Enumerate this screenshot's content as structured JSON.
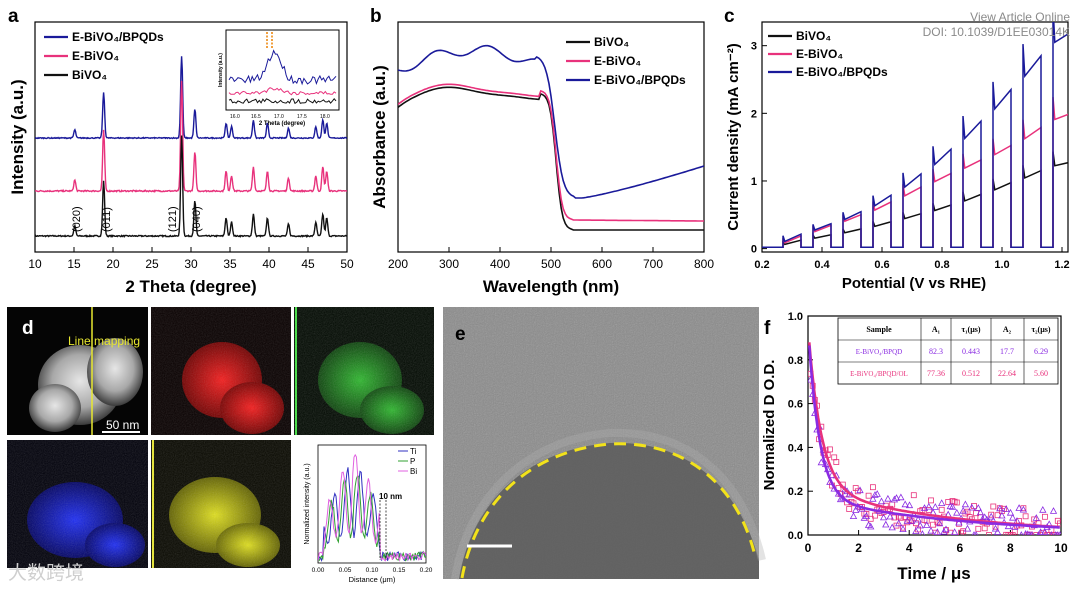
{
  "header": {
    "view_article": "View Article Online",
    "doi": "DOI: 10.1039/D1EE03014K"
  },
  "watermark": {
    "logo": "大数跨境"
  },
  "colors": {
    "blue": "#1a1a9a",
    "pink": "#e8327c",
    "black": "#111111",
    "purple": "#8a2be2"
  },
  "panels": {
    "a": {
      "letter": "a",
      "inset_xlabel": "2 Theta (degree)",
      "inset_ylabel": "Intensity (a.u.)",
      "inset_ticks": [
        "16.0",
        "16.5",
        "17.0",
        "17.5",
        "18.0"
      ],
      "peaks": [
        "(020)",
        "(011)",
        "(121)",
        "(040)"
      ]
    },
    "b": {
      "letter": "b"
    },
    "c": {
      "letter": "c"
    },
    "d": {
      "letter": "d",
      "line_mapping": "Line mapping",
      "scale": "50 nm",
      "lp_annotation": "10 nm",
      "lp_xlabel": "Distance (μm)",
      "lp_ylabel": "Normalized intensity (a.u.)",
      "lp_xticks": [
        "0.00",
        "0.05",
        "0.10",
        "0.15",
        "0.20"
      ],
      "lp_legend": [
        "Ti",
        "P",
        "Bi"
      ]
    },
    "e": {
      "letter": "e"
    },
    "f": {
      "letter": "f",
      "table": {
        "headers": [
          "Sample",
          "A₁",
          "τ₁(μs)",
          "A₂",
          "τ₂(μs)"
        ],
        "rows": [
          [
            "E-BiVO₄/BPQD",
            "82.3",
            "0.443",
            "17.7",
            "6.29"
          ],
          [
            "E-BiVO₄/BPQD/OL",
            "77.36",
            "0.512",
            "22.64",
            "5.60"
          ]
        ]
      }
    }
  },
  "chart_data": [
    {
      "type": "line",
      "panel": "a",
      "title": "",
      "xlabel": "2 Theta (degree)",
      "ylabel": "Intensity (a.u.)",
      "xlim": [
        10,
        50
      ],
      "xticks": [
        10,
        15,
        20,
        25,
        30,
        35,
        40,
        45,
        50
      ],
      "legend": [
        "E-BiVO₄/BPQDs",
        "E-BiVO₄",
        "BiVO₄"
      ],
      "peaks_2theta": [
        15.1,
        18.8,
        28.8,
        30.5,
        34.5,
        35.2,
        38.0,
        39.8,
        42.5,
        46.0,
        46.9,
        47.4
      ]
    },
    {
      "type": "line",
      "panel": "b",
      "title": "",
      "xlabel": "Wavelength (nm)",
      "ylabel": "Absorbance (a.u.)",
      "xlim": [
        200,
        800
      ],
      "xticks": [
        200,
        300,
        400,
        500,
        600,
        700,
        800
      ],
      "legend": [
        "BiVO₄",
        "E-BiVO₄",
        "E-BiVO₄/BPQDs"
      ]
    },
    {
      "type": "line",
      "panel": "c",
      "title": "",
      "xlabel": "Potential (V vs RHE)",
      "ylabel": "Current density (mA cm⁻²)",
      "xlim": [
        0.2,
        1.22
      ],
      "ylim": [
        -0.05,
        3.35
      ],
      "xticks": [
        "0.2",
        "0.4",
        "0.6",
        "0.8",
        "1.0",
        "1.2"
      ],
      "yticks": [
        "0",
        "1",
        "2",
        "3"
      ],
      "legend": [
        "BiVO₄",
        "E-BiVO₄",
        "E-BiVO₄/BPQDs"
      ],
      "series": [
        {
          "name": "BiVO₄",
          "potential": [
            0.3,
            0.4,
            0.5,
            0.6,
            0.7,
            0.8,
            0.9,
            1.0,
            1.1,
            1.2
          ],
          "current": [
            0.1,
            0.18,
            0.26,
            0.36,
            0.48,
            0.6,
            0.75,
            0.92,
            1.1,
            1.28
          ]
        },
        {
          "name": "E-BiVO₄",
          "potential": [
            0.3,
            0.4,
            0.5,
            0.6,
            0.7,
            0.8,
            0.9,
            1.0,
            1.1,
            1.2
          ],
          "current": [
            0.14,
            0.3,
            0.45,
            0.62,
            0.85,
            1.05,
            1.25,
            1.45,
            1.7,
            2.0
          ]
        },
        {
          "name": "E-BiVO₄/BPQDs",
          "potential": [
            0.3,
            0.4,
            0.5,
            0.6,
            0.7,
            0.8,
            0.9,
            1.0,
            1.1,
            1.2
          ],
          "current": [
            0.17,
            0.32,
            0.48,
            0.7,
            1.0,
            1.35,
            1.75,
            2.2,
            2.7,
            3.2
          ]
        }
      ]
    },
    {
      "type": "scatter",
      "panel": "f",
      "title": "",
      "xlabel": "Time / μs",
      "ylabel": "Normalized D O.D.",
      "xlim": [
        0,
        10
      ],
      "ylim": [
        0,
        1.0
      ],
      "xticks": [
        "0",
        "2",
        "4",
        "6",
        "8",
        "10"
      ],
      "yticks": [
        "0.0",
        "0.2",
        "0.4",
        "0.6",
        "0.8",
        "1.0"
      ],
      "series": [
        {
          "name": "E-BiVO₄/BPQD",
          "A1": 82.3,
          "tau1": 0.443,
          "A2": 17.7,
          "tau2": 6.29
        },
        {
          "name": "E-BiVO₄/BPQD/OL",
          "A1": 77.36,
          "tau1": 0.512,
          "A2": 22.64,
          "tau2": 5.6
        }
      ]
    }
  ]
}
